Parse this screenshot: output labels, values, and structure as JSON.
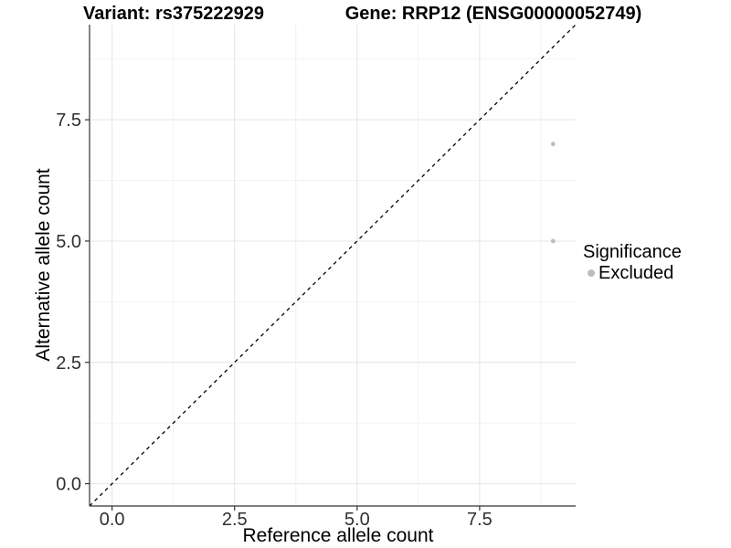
{
  "chart_data": {
    "type": "scatter",
    "title_left": "Variant: rs375222929",
    "title_right": "Gene: RRP12 (ENSG00000052749)",
    "xlabel": "Reference allele count",
    "ylabel": "Alternative allele count",
    "xlim": [
      -0.46,
      9.46
    ],
    "ylim": [
      -0.46,
      9.46
    ],
    "grid": true,
    "x_ticks": {
      "values": [
        0,
        2.5,
        5,
        7.5
      ],
      "labels": [
        "0.0",
        "2.5",
        "5.0",
        "7.5"
      ]
    },
    "y_ticks": {
      "values": [
        0,
        2.5,
        5,
        7.5
      ],
      "labels": [
        "0.0",
        "2.5",
        "5.0",
        "7.5"
      ]
    },
    "x_minor_ticks": [
      1.25,
      3.75,
      6.25,
      8.75
    ],
    "y_minor_ticks": [
      1.25,
      3.75,
      6.25,
      8.75
    ],
    "series": [
      {
        "name": "Excluded",
        "color": "#bdbdbd",
        "marker": "circle",
        "points": [
          [
            9,
            7
          ],
          [
            9,
            5
          ]
        ]
      }
    ],
    "identity_line": {
      "equation": "y = x",
      "style": "dashed",
      "color": "#000000"
    },
    "legend_position": "right"
  },
  "legend": {
    "title": "Significance",
    "items": [
      {
        "label": "Excluded",
        "color": "#bdbdbd"
      }
    ]
  },
  "colors": {
    "background": "#ffffff",
    "point": "#bdbdbd",
    "grid_major": "#e4e4e4",
    "grid_minor": "#efefef",
    "axis_line": "#333333",
    "tick_label": "#303030",
    "title_text": "#000000"
  }
}
